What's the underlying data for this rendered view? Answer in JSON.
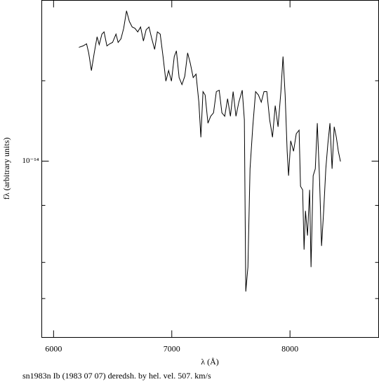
{
  "chart_data": {
    "type": "line",
    "title": "sn1983n Ib (1983 07 07) deredsh. by hel. vel.   507. km/s",
    "xlabel": "λ (Å)",
    "ylabel": "fλ (arbitrary units)",
    "color": "#000000",
    "log_y": true,
    "xlim": [
      5900,
      8750
    ],
    "xticks": [
      6000,
      7000,
      8000
    ],
    "ylim": [
      4.11e-15,
      2.25e-14
    ],
    "yticks": [
      {
        "value": 1e-14,
        "label": "10⁻¹⁴"
      }
    ],
    "minor_yticks": [
      1.5e-14,
      8e-15,
      6e-15,
      5e-15
    ],
    "x": [
      6214,
      6249,
      6279,
      6297,
      6320,
      6344,
      6368,
      6386,
      6409,
      6427,
      6451,
      6475,
      6499,
      6528,
      6546,
      6570,
      6593,
      6617,
      6641,
      6665,
      6688,
      6712,
      6736,
      6760,
      6783,
      6807,
      6831,
      6855,
      6878,
      6902,
      6926,
      6950,
      6973,
      6997,
      7021,
      7039,
      7062,
      7086,
      7110,
      7134,
      7157,
      7181,
      7205,
      7229,
      7246,
      7264,
      7282,
      7306,
      7329,
      7353,
      7377,
      7401,
      7424,
      7448,
      7472,
      7496,
      7519,
      7543,
      7567,
      7596,
      7614,
      7626,
      7644,
      7662,
      7685,
      7709,
      7733,
      7757,
      7780,
      7804,
      7828,
      7852,
      7875,
      7899,
      7923,
      7941,
      7959,
      7976,
      7988,
      8006,
      8030,
      8053,
      8077,
      8089,
      8107,
      8119,
      8131,
      8148,
      8166,
      8178,
      8196,
      8214,
      8231,
      8249,
      8267,
      8285,
      8303,
      8320,
      8338,
      8356,
      8374,
      8392,
      8409,
      8427
    ],
    "values": [
      1.775e-14,
      1.788e-14,
      1.807e-14,
      1.726e-14,
      1.579e-14,
      1.726e-14,
      1.872e-14,
      1.8e-14,
      1.898e-14,
      1.919e-14,
      1.788e-14,
      1.807e-14,
      1.82e-14,
      1.898e-14,
      1.82e-14,
      1.853e-14,
      1.954e-14,
      2.134e-14,
      2.023e-14,
      1.967e-14,
      1.954e-14,
      1.919e-14,
      1.967e-14,
      1.833e-14,
      1.94e-14,
      1.967e-14,
      1.853e-14,
      1.757e-14,
      1.919e-14,
      1.898e-14,
      1.695e-14,
      1.497e-14,
      1.579e-14,
      1.497e-14,
      1.695e-14,
      1.744e-14,
      1.524e-14,
      1.471e-14,
      1.535e-14,
      1.726e-14,
      1.636e-14,
      1.524e-14,
      1.551e-14,
      1.346e-14,
      1.128e-14,
      1.42e-14,
      1.396e-14,
      1.211e-14,
      1.254e-14,
      1.276e-14,
      1.42e-14,
      1.43e-14,
      1.276e-14,
      1.254e-14,
      1.37e-14,
      1.254e-14,
      1.42e-14,
      1.254e-14,
      1.346e-14,
      1.43e-14,
      1.232e-14,
      5.18e-15,
      5.86e-15,
      9.62e-15,
      1.189e-14,
      1.42e-14,
      1.396e-14,
      1.346e-14,
      1.42e-14,
      1.42e-14,
      1.232e-14,
      1.128e-14,
      1.323e-14,
      1.189e-14,
      1.42e-14,
      1.695e-14,
      1.396e-14,
      1.051e-14,
      9.29e-15,
      1.108e-14,
      1.051e-14,
      1.148e-14,
      1.169e-14,
      8.81e-15,
      8.65e-15,
      6.4e-15,
      7.78e-15,
      6.87e-15,
      8.65e-15,
      5.86e-15,
      9.29e-15,
      9.62e-15,
      1.211e-14,
      9.29e-15,
      6.52e-15,
      7.78e-15,
      9.62e-15,
      1.089e-14,
      1.211e-14,
      9.62e-15,
      1.189e-14,
      1.128e-14,
      1.051e-14,
      9.98e-15
    ]
  }
}
